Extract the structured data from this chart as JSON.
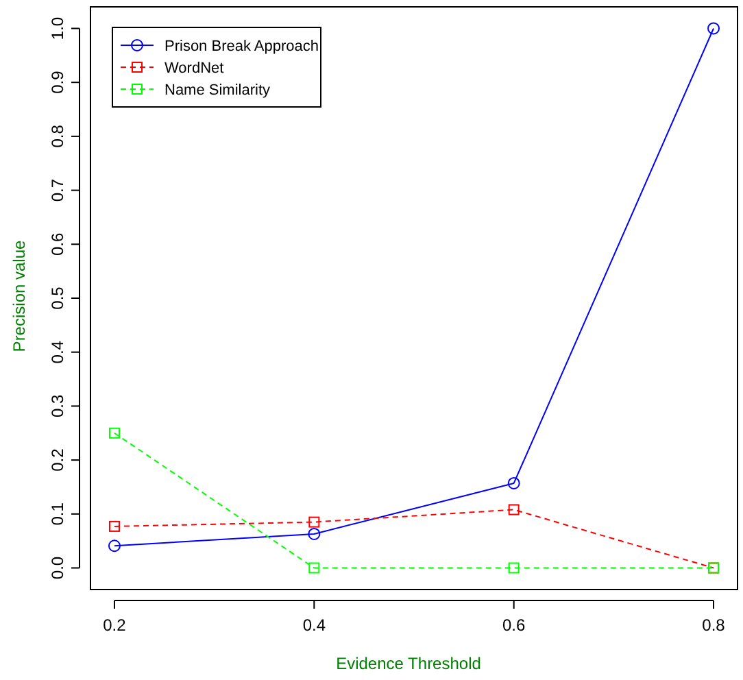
{
  "chart_data": {
    "type": "line",
    "xlabel": "Evidence Threshold",
    "ylabel": "Precision value",
    "x": [
      0.2,
      0.4,
      0.6,
      0.8
    ],
    "series": [
      {
        "name": "Prison Break Approach",
        "color": "#0000ff",
        "values": [
          0.041,
          0.063,
          0.157,
          1.0
        ],
        "marker": "circle",
        "line_style": "solid"
      },
      {
        "name": "WordNet",
        "color": "#ff0000",
        "values": [
          0.077,
          0.085,
          0.108,
          0.0
        ],
        "marker": "square",
        "line_style": "dashed"
      },
      {
        "name": "Name Similarity",
        "color": "#00ff00",
        "values": [
          0.25,
          0.0,
          0.0,
          0.0
        ],
        "marker": "square",
        "line_style": "dashed"
      }
    ],
    "xlim": [
      0.176,
      0.824
    ],
    "ylim": [
      -0.04,
      1.04
    ],
    "xticks": [
      {
        "value": 0.2,
        "label": "0.2"
      },
      {
        "value": 0.4,
        "label": "0.4"
      },
      {
        "value": 0.6,
        "label": "0.6"
      },
      {
        "value": 0.8,
        "label": "0.8"
      }
    ],
    "yticks": [
      {
        "value": 0,
        "label": "0.0"
      },
      {
        "value": 0.1,
        "label": "0.1"
      },
      {
        "value": 0.2,
        "label": "0.2"
      },
      {
        "value": 0.3,
        "label": "0.3"
      },
      {
        "value": 0.4,
        "label": "0.4"
      },
      {
        "value": 0.5,
        "label": "0.5"
      },
      {
        "value": 0.6,
        "label": "0.6"
      },
      {
        "value": 0.7,
        "label": "0.7"
      },
      {
        "value": 0.8,
        "label": "0.8"
      },
      {
        "value": 0.9,
        "label": "0.9"
      },
      {
        "value": 1,
        "label": "1.0"
      }
    ],
    "legend": "top left",
    "grid": false
  }
}
